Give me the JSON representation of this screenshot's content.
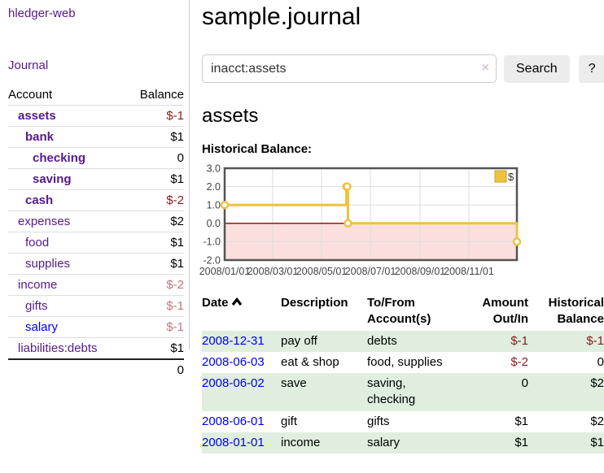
{
  "sidebar": {
    "app_title": "hledger-web",
    "nav": {
      "journal_label": "Journal"
    },
    "accounts_table": {
      "headers": {
        "account": "Account",
        "balance": "Balance"
      },
      "rows": [
        {
          "name": "assets",
          "balance": "$-1",
          "indent": 1,
          "bold": true,
          "balance_color": "negative"
        },
        {
          "name": "bank",
          "balance": "$1",
          "indent": 2,
          "bold": true,
          "balance_color": "normal"
        },
        {
          "name": "checking",
          "balance": "0",
          "indent": 3,
          "bold": true,
          "balance_color": "normal"
        },
        {
          "name": "saving",
          "balance": "$1",
          "indent": 3,
          "bold": true,
          "balance_color": "normal"
        },
        {
          "name": "cash",
          "balance": "$-2",
          "indent": 2,
          "bold": true,
          "balance_color": "negative"
        },
        {
          "name": "expenses",
          "balance": "$2",
          "indent": 1,
          "bold": false,
          "balance_color": "normal"
        },
        {
          "name": "food",
          "balance": "$1",
          "indent": 2,
          "bold": false,
          "balance_color": "normal"
        },
        {
          "name": "supplies",
          "balance": "$1",
          "indent": 2,
          "bold": false,
          "balance_color": "normal"
        },
        {
          "name": "income",
          "balance": "$-2",
          "indent": 1,
          "bold": false,
          "balance_color": "negative-light"
        },
        {
          "name": "gifts",
          "balance": "$-1",
          "indent": 2,
          "bold": false,
          "balance_color": "negative-light"
        },
        {
          "name": "salary",
          "balance": "$-1",
          "indent": 2,
          "bold": false,
          "balance_color": "negative-light",
          "link_style": "unvisited"
        },
        {
          "name": "liabilities:debts",
          "balance": "$1",
          "indent": 1,
          "bold": false,
          "balance_color": "normal"
        }
      ],
      "total": "0"
    }
  },
  "header": {
    "title": "sample.journal"
  },
  "search": {
    "value": "inacct:assets",
    "clear_icon": "×",
    "button_label": "Search",
    "help_label": "?"
  },
  "account_page": {
    "heading": "assets",
    "chart_label": "Historical Balance:"
  },
  "chart_data": {
    "type": "line",
    "title": "Historical Balance:",
    "step": true,
    "series": [
      {
        "name": "$",
        "color": "#edc240",
        "points": [
          {
            "date": "2008-01-01",
            "value": 1
          },
          {
            "date": "2008-06-01",
            "value": 2
          },
          {
            "date": "2008-06-02",
            "value": 2
          },
          {
            "date": "2008-06-03",
            "value": 0
          },
          {
            "date": "2008-12-31",
            "value": -1
          }
        ]
      }
    ],
    "x_range": [
      "2008-01-01",
      "2008-12-31"
    ],
    "y_range": [
      -2,
      3
    ],
    "x_ticks": [
      "2008/01/01",
      "2008/03/01",
      "2008/05/01",
      "2008/07/01",
      "2008/09/01",
      "2008/11/01"
    ],
    "y_ticks": [
      "3.0",
      "2.0",
      "1.0",
      "0.0",
      "-1.0",
      "-2.0"
    ],
    "grid": true,
    "legend_position": "top-right",
    "negative_region_color": "#fbdfdf",
    "zero_line_color": "#8b0000",
    "grid_color": "#dddddd",
    "border_color": "#545454",
    "tick_label_color": "#444444"
  },
  "transactions_table": {
    "headers": {
      "date": "Date",
      "description": "Description",
      "tofrom": "To/From Account(s)",
      "amount": "Amount Out/In",
      "balance": "Historical Balance"
    },
    "sort_direction": "ascending",
    "rows": [
      {
        "date": "2008-12-31",
        "description": "pay off",
        "accounts": "debts",
        "amount": "$-1",
        "amount_negative": true,
        "balance": "$-1",
        "balance_negative": true
      },
      {
        "date": "2008-06-03",
        "description": "eat & shop",
        "accounts": "food, supplies",
        "amount": "$-2",
        "amount_negative": true,
        "balance": "0",
        "balance_negative": false
      },
      {
        "date": "2008-06-02",
        "description": "save",
        "accounts": "saving, checking",
        "amount": "0",
        "amount_negative": false,
        "balance": "$2",
        "balance_negative": false
      },
      {
        "date": "2008-06-01",
        "description": "gift",
        "accounts": "gifts",
        "amount": "$1",
        "amount_negative": false,
        "balance": "$2",
        "balance_negative": false
      },
      {
        "date": "2008-01-01",
        "description": "income",
        "accounts": "salary",
        "amount": "$1",
        "amount_negative": false,
        "balance": "$1",
        "balance_negative": false
      }
    ]
  },
  "colors": {
    "link_purple": "#551a8b",
    "link_blue": "#0000ee",
    "negative": "#8b1a1a",
    "negative_light": "#c4757f",
    "row_green": "#dfeede",
    "chart_series_yellow": "#edc240"
  }
}
